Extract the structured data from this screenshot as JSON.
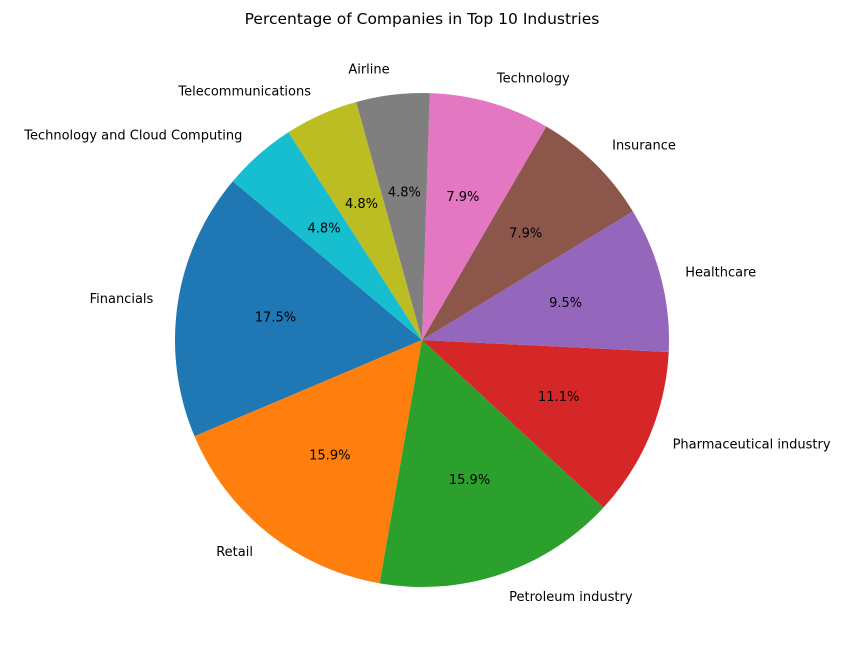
{
  "chart_data": {
    "type": "pie",
    "title": "Percentage of Companies in Top 10 Industries",
    "start_angle_deg": 140,
    "direction": "counterclockwise",
    "slices": [
      {
        "label": "Financials",
        "value": 17.5,
        "pct_label": "17.5%",
        "color": "#1f77b4"
      },
      {
        "label": "Retail",
        "value": 15.9,
        "pct_label": "15.9%",
        "color": "#ff7f0e"
      },
      {
        "label": "Petroleum industry",
        "value": 15.9,
        "pct_label": "15.9%",
        "color": "#2ca02c"
      },
      {
        "label": "Pharmaceutical industry",
        "value": 11.1,
        "pct_label": "11.1%",
        "color": "#d62728"
      },
      {
        "label": "Healthcare",
        "value": 9.5,
        "pct_label": "9.5%",
        "color": "#9467bd"
      },
      {
        "label": "Insurance",
        "value": 7.9,
        "pct_label": "7.9%",
        "color": "#8c564b"
      },
      {
        "label": "Technology",
        "value": 7.9,
        "pct_label": "7.9%",
        "color": "#e377c2"
      },
      {
        "label": "Airline",
        "value": 4.8,
        "pct_label": "4.8%",
        "color": "#7f7f7f"
      },
      {
        "label": "Telecommunications",
        "value": 4.8,
        "pct_label": "4.8%",
        "color": "#bcbd22"
      },
      {
        "label": "Technology and Cloud Computing",
        "value": 4.8,
        "pct_label": "4.8%",
        "color": "#17becf"
      }
    ]
  }
}
